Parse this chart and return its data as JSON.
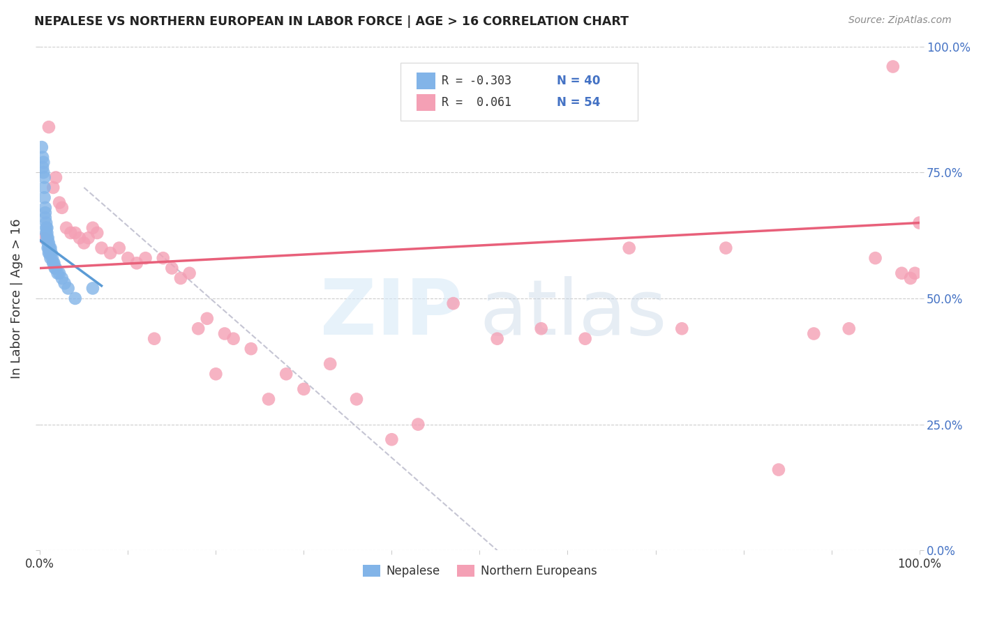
{
  "title": "NEPALESE VS NORTHERN EUROPEAN IN LABOR FORCE | AGE > 16 CORRELATION CHART",
  "source": "Source: ZipAtlas.com",
  "ylabel": "In Labor Force | Age > 16",
  "color_blue": "#82B4E8",
  "color_pink": "#F4A0B5",
  "color_blue_line": "#5B9BD5",
  "color_pink_line": "#E8607A",
  "color_dashed": "#BBBBCC",
  "ytick_labels": [
    "0.0%",
    "25.0%",
    "50.0%",
    "75.0%",
    "100.0%"
  ],
  "ytick_values": [
    0.0,
    0.25,
    0.5,
    0.75,
    1.0
  ],
  "xlim": [
    0.0,
    1.0
  ],
  "ylim": [
    0.0,
    1.0
  ],
  "blue_points_x": [
    0.002,
    0.003,
    0.003,
    0.004,
    0.004,
    0.005,
    0.005,
    0.005,
    0.006,
    0.006,
    0.006,
    0.007,
    0.007,
    0.007,
    0.008,
    0.008,
    0.008,
    0.009,
    0.009,
    0.009,
    0.01,
    0.01,
    0.01,
    0.011,
    0.011,
    0.012,
    0.012,
    0.013,
    0.014,
    0.015,
    0.016,
    0.017,
    0.018,
    0.02,
    0.022,
    0.025,
    0.028,
    0.032,
    0.04,
    0.06
  ],
  "blue_points_y": [
    0.8,
    0.78,
    0.76,
    0.77,
    0.75,
    0.74,
    0.72,
    0.7,
    0.68,
    0.67,
    0.66,
    0.65,
    0.64,
    0.63,
    0.64,
    0.63,
    0.62,
    0.62,
    0.61,
    0.6,
    0.61,
    0.6,
    0.59,
    0.6,
    0.59,
    0.6,
    0.58,
    0.59,
    0.58,
    0.57,
    0.57,
    0.56,
    0.56,
    0.55,
    0.55,
    0.54,
    0.53,
    0.52,
    0.5,
    0.52
  ],
  "pink_points_x": [
    0.005,
    0.01,
    0.015,
    0.018,
    0.022,
    0.025,
    0.03,
    0.035,
    0.04,
    0.045,
    0.05,
    0.055,
    0.06,
    0.065,
    0.07,
    0.08,
    0.09,
    0.1,
    0.11,
    0.12,
    0.13,
    0.14,
    0.15,
    0.16,
    0.17,
    0.18,
    0.19,
    0.2,
    0.21,
    0.22,
    0.24,
    0.26,
    0.28,
    0.3,
    0.33,
    0.36,
    0.4,
    0.43,
    0.47,
    0.52,
    0.57,
    0.62,
    0.67,
    0.73,
    0.78,
    0.84,
    0.88,
    0.92,
    0.95,
    0.97,
    0.98,
    0.99,
    0.995,
    1.0
  ],
  "pink_points_y": [
    0.62,
    0.84,
    0.72,
    0.74,
    0.69,
    0.68,
    0.64,
    0.63,
    0.63,
    0.62,
    0.61,
    0.62,
    0.64,
    0.63,
    0.6,
    0.59,
    0.6,
    0.58,
    0.57,
    0.58,
    0.42,
    0.58,
    0.56,
    0.54,
    0.55,
    0.44,
    0.46,
    0.35,
    0.43,
    0.42,
    0.4,
    0.3,
    0.35,
    0.32,
    0.37,
    0.3,
    0.22,
    0.25,
    0.49,
    0.42,
    0.44,
    0.42,
    0.6,
    0.44,
    0.6,
    0.16,
    0.43,
    0.44,
    0.58,
    0.96,
    0.55,
    0.54,
    0.55,
    0.65
  ],
  "blue_line_x": [
    0.0,
    0.07
  ],
  "blue_line_y": [
    0.615,
    0.525
  ],
  "pink_line_x": [
    0.0,
    1.0
  ],
  "pink_line_y": [
    0.56,
    0.65
  ],
  "dash_line_x": [
    0.05,
    0.52
  ],
  "dash_line_y": [
    0.72,
    0.0
  ]
}
